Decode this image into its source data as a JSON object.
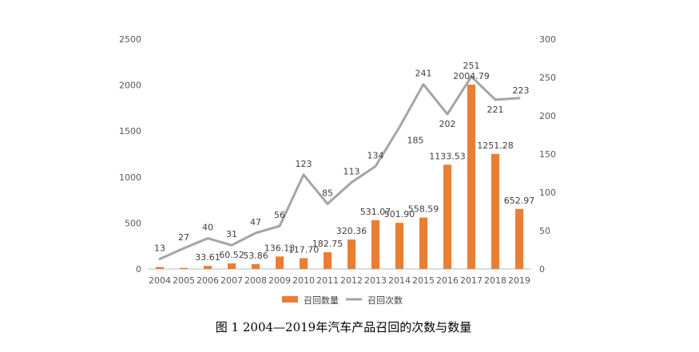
{
  "caption": "图 1 2004—2019年汽车产品召回的次数与数量",
  "colors": {
    "bar": "#ED7D31",
    "line": "#A5A5A5",
    "axis": "#BFBFBF",
    "text": "#595959"
  },
  "chart_data": {
    "type": "bar",
    "categories": [
      "2004",
      "2005",
      "2006",
      "2007",
      "2008",
      "2009",
      "2010",
      "2011",
      "2012",
      "2013",
      "2014",
      "2015",
      "2016",
      "2017",
      "2018",
      "2019"
    ],
    "series": [
      {
        "name": "召回数量",
        "type": "bar",
        "axis": "left",
        "values": [
          21,
          12,
          33.61,
          60.52,
          53.86,
          136.13,
          117.7,
          182.75,
          320.36,
          531.07,
          501.9,
          558.59,
          1133.53,
          2004.79,
          1251.28,
          652.97
        ],
        "labels": [
          "",
          "",
          "33.61",
          "60.52",
          "53.86",
          "136.13",
          "117.70",
          "182.75",
          "320.36",
          "531.07",
          "501.90",
          "558.59",
          "1133.53",
          "2004.79",
          "1251.28",
          "652.97"
        ]
      },
      {
        "name": "召回次数",
        "type": "line",
        "axis": "right",
        "values": [
          13,
          27,
          40,
          31,
          47,
          56,
          123,
          85,
          113,
          134,
          185,
          241,
          202,
          251,
          221,
          223
        ],
        "labels": [
          "13",
          "27",
          "40",
          "31",
          "47",
          "56",
          "123",
          "85",
          "113",
          "134",
          "185",
          "241",
          "202",
          "251",
          "221",
          "223"
        ]
      }
    ],
    "y_left": {
      "min": 0,
      "max": 2500,
      "ticks": [
        "0",
        "500",
        "1000",
        "1500",
        "2000",
        "2500"
      ]
    },
    "y_right": {
      "min": 0,
      "max": 300,
      "ticks": [
        "0",
        "50",
        "100",
        "150",
        "200",
        "250",
        "300"
      ]
    },
    "legend": {
      "position": "bottom",
      "items": [
        "召回数量",
        "召回次数"
      ]
    },
    "grid": false
  }
}
